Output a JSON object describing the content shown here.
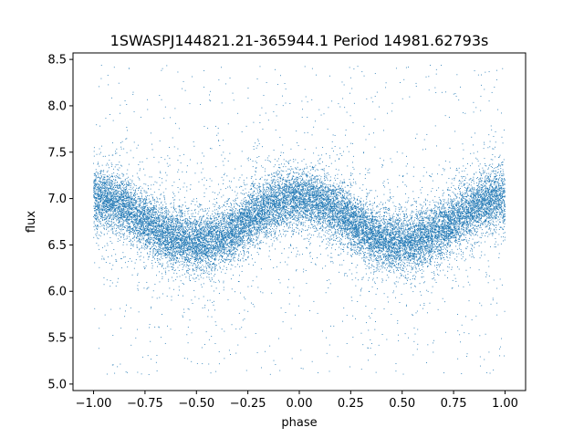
{
  "chart_data": {
    "type": "scatter",
    "title": "1SWASPJ144821.21-365944.1 Period 14981.62793s",
    "xlabel": "phase",
    "ylabel": "flux",
    "xlim": [
      -1.1,
      1.1
    ],
    "ylim": [
      4.93,
      8.57
    ],
    "xticks": [
      -1.0,
      -0.75,
      -0.5,
      -0.25,
      0.0,
      0.25,
      0.5,
      0.75,
      1.0
    ],
    "xtick_labels": [
      "−1.00",
      "−0.75",
      "−0.50",
      "−0.25",
      "0.00",
      "0.25",
      "0.50",
      "0.75",
      "1.00"
    ],
    "yticks": [
      5.0,
      5.5,
      6.0,
      6.5,
      7.0,
      7.5,
      8.0,
      8.5
    ],
    "ytick_labels": [
      "5.0",
      "5.5",
      "6.0",
      "6.5",
      "7.0",
      "7.5",
      "8.0",
      "8.5"
    ],
    "grid": false,
    "marker_color": "#1f77b4",
    "series": [
      {
        "model": "sinusoidal light curve, two cycles over phase -1 to 1",
        "x_range": [
          -1.0,
          1.0
        ],
        "y_mean": 6.76,
        "y_amplitude": 0.24,
        "y_peak_phases": [
          -1.0,
          0.0,
          1.0
        ],
        "y_trough_phases": [
          -0.5,
          0.5
        ],
        "y_scatter": 0.15,
        "outlier_y_range": [
          5.1,
          8.45
        ],
        "point_count": 20000
      }
    ]
  }
}
